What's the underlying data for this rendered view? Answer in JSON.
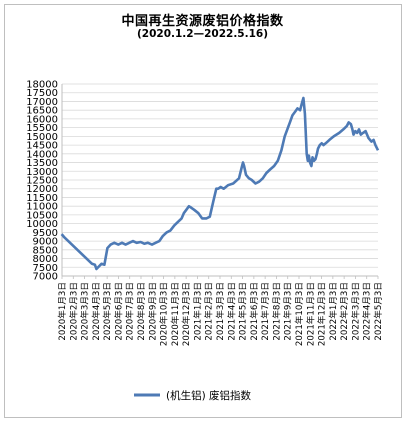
{
  "chart_data": {
    "type": "line",
    "title": "中国再生资源废铝价格指数",
    "subtitle": "(2020.1.2—2022.5.16)",
    "xlabel": "",
    "ylabel": "",
    "ylim": [
      7000,
      18000
    ],
    "yticks": [
      7000,
      7500,
      8000,
      8500,
      9000,
      9500,
      10000,
      10500,
      11000,
      11500,
      12000,
      12500,
      13000,
      13500,
      14000,
      14500,
      15000,
      15500,
      16000,
      16500,
      17000,
      17500,
      18000
    ],
    "categories": [
      "2020年1月3日",
      "2020年2月3日",
      "2020年3月3日",
      "2020年4月3日",
      "2020年5月3日",
      "2020年6月3日",
      "2020年7月3日",
      "2020年8月3日",
      "2020年9月3日",
      "2020年10月3日",
      "2020年11月3日",
      "2020年12月3日",
      "2021年1月3日",
      "2021年2月3日",
      "2021年3月3日",
      "2021年4月3日",
      "2021年5月3日",
      "2021年6月3日",
      "2021年7月3日",
      "2021年8月3日",
      "2021年9月3日",
      "2021年10月3日",
      "2021年11月3日",
      "2021年12月3日",
      "2022年1月3日",
      "2022年2月3日",
      "2022年3月3日",
      "2022年4月3日",
      "2022年5月3日"
    ],
    "legend_position": "bottom",
    "grid": true,
    "color": "#4e7ab5",
    "series": [
      {
        "name": "(机生铝) 废铝指数",
        "x": [
          "2020-01-02",
          "2020-01-10",
          "2020-03-25",
          "2020-04-02",
          "2020-04-06",
          "2020-04-20",
          "2020-04-28",
          "2020-05-06",
          "2020-05-15",
          "2020-05-25",
          "2020-06-05",
          "2020-06-15",
          "2020-06-25",
          "2020-07-05",
          "2020-07-15",
          "2020-07-25",
          "2020-08-05",
          "2020-08-15",
          "2020-08-25",
          "2020-09-05",
          "2020-09-15",
          "2020-09-25",
          "2020-10-05",
          "2020-10-15",
          "2020-10-25",
          "2020-11-05",
          "2020-11-15",
          "2020-11-25",
          "2020-12-01",
          "2020-12-08",
          "2020-12-15",
          "2020-12-22",
          "2020-12-29",
          "2021-01-10",
          "2021-01-20",
          "2021-02-01",
          "2021-02-10",
          "2021-02-20",
          "2021-02-28",
          "2021-03-05",
          "2021-03-12",
          "2021-03-20",
          "2021-04-01",
          "2021-04-15",
          "2021-05-01",
          "2021-05-08",
          "2021-05-12",
          "2021-05-15",
          "2021-05-20",
          "2021-05-28",
          "2021-06-05",
          "2021-06-15",
          "2021-06-25",
          "2021-07-05",
          "2021-07-15",
          "2021-07-25",
          "2021-08-05",
          "2021-08-15",
          "2021-08-25",
          "2021-09-03",
          "2021-09-10",
          "2021-09-17",
          "2021-09-24",
          "2021-10-01",
          "2021-10-08",
          "2021-10-15",
          "2021-10-20",
          "2021-10-24",
          "2021-10-28",
          "2021-11-02",
          "2021-11-05",
          "2021-11-08",
          "2021-11-11",
          "2021-11-15",
          "2021-11-18",
          "2021-11-22",
          "2021-11-26",
          "2021-11-30",
          "2021-12-03",
          "2021-12-08",
          "2021-12-13",
          "2021-12-18",
          "2021-12-24",
          "2022-01-03",
          "2022-01-15",
          "2022-01-30",
          "2022-02-10",
          "2022-02-20",
          "2022-02-25",
          "2022-03-03",
          "2022-03-07",
          "2022-03-10",
          "2022-03-15",
          "2022-03-20",
          "2022-03-25",
          "2022-03-30",
          "2022-04-05",
          "2022-04-12",
          "2022-04-20",
          "2022-04-28",
          "2022-05-04",
          "2022-05-09",
          "2022-05-16"
        ],
        "values": [
          9400,
          9200,
          7700,
          7650,
          7400,
          7700,
          7650,
          8600,
          8800,
          8900,
          8800,
          8900,
          8800,
          8900,
          9000,
          8900,
          8950,
          8850,
          8900,
          8800,
          8900,
          9000,
          9300,
          9500,
          9600,
          9900,
          10100,
          10300,
          10600,
          10800,
          11000,
          10900,
          10800,
          10600,
          10300,
          10300,
          10400,
          11300,
          12000,
          12000,
          12100,
          12000,
          12200,
          12300,
          12600,
          13200,
          13500,
          13300,
          12800,
          12600,
          12500,
          12300,
          12400,
          12600,
          12900,
          13100,
          13300,
          13600,
          14200,
          15000,
          15400,
          15800,
          16200,
          16400,
          16600,
          16500,
          16900,
          17200,
          16300,
          14000,
          13600,
          13900,
          13500,
          13300,
          13800,
          13600,
          13700,
          14000,
          14300,
          14500,
          14600,
          14500,
          14600,
          14800,
          15000,
          15200,
          15400,
          15600,
          15800,
          15700,
          15400,
          15100,
          15300,
          15200,
          15400,
          15100,
          15200,
          15300,
          14900,
          14700,
          14800,
          14500,
          14200
        ]
      }
    ]
  }
}
